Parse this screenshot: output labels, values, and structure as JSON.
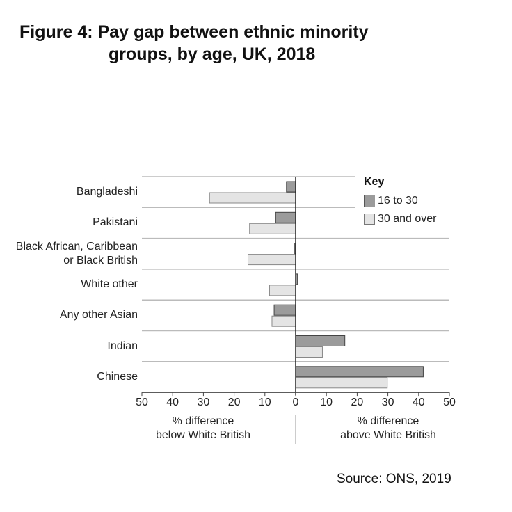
{
  "title": {
    "line1": "Figure 4: Pay gap between ethnic minority",
    "line2": "groups, by age, UK, 2018"
  },
  "legend": {
    "title": "Key",
    "items": [
      {
        "label": "16 to 30",
        "color": "#9b9b9b"
      },
      {
        "label": "30 and over",
        "color": "#e4e4e4"
      }
    ]
  },
  "axis": {
    "ticks": [
      "50",
      "40",
      "30",
      "20",
      "10",
      "0",
      "10",
      "20",
      "30",
      "40",
      "50"
    ],
    "left_label_line1": "% difference",
    "left_label_line2": "below White British",
    "right_label_line1": "% difference",
    "right_label_line2": "above White British"
  },
  "source": "Source: ONS, 2019",
  "chart_data": {
    "type": "bar",
    "orientation": "horizontal",
    "title": "Figure 4: Pay gap between ethnic minority groups, by age, UK, 2018",
    "xlabel": "% difference below / above White British",
    "ylabel": "",
    "xlim": [
      -50,
      50
    ],
    "x_ticks": [
      -50,
      -40,
      -30,
      -20,
      -10,
      0,
      10,
      20,
      30,
      40,
      50
    ],
    "categories": [
      "Bangladeshi",
      "Pakistani",
      "Black African, Caribbean or Black British",
      "White other",
      "Any other Asian",
      "Indian",
      "Chinese"
    ],
    "category_display": [
      [
        "Bangladeshi"
      ],
      [
        "Pakistani"
      ],
      [
        "Black African, Caribbean",
        "or Black British"
      ],
      [
        "White other"
      ],
      [
        "Any other Asian"
      ],
      [
        "Indian"
      ],
      [
        "Chinese"
      ]
    ],
    "series": [
      {
        "name": "16 to 30",
        "color": "#9b9b9b",
        "values": [
          -3,
          -6.5,
          -0.3,
          0.6,
          -7,
          16,
          41.5
        ]
      },
      {
        "name": "30 and over",
        "color": "#e4e4e4",
        "values": [
          -28,
          -15,
          -15.5,
          -8.5,
          -7.7,
          8.7,
          29.8
        ]
      }
    ],
    "legend_position": "top-right",
    "grid": "horizontal separators between categories",
    "source": "Source: ONS, 2019"
  }
}
